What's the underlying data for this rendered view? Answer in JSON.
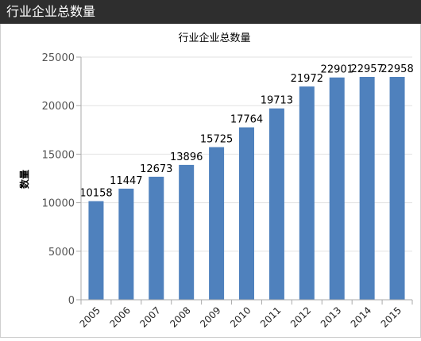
{
  "header": {
    "title": "行业企业总数量"
  },
  "colors": {
    "bar": "#4f81bd",
    "header_bg": "#2e2e2e",
    "axis": "#aaaaaa",
    "tick_text": "#555555"
  },
  "chart_data": {
    "type": "bar",
    "title": "行业企业总数量",
    "xlabel": "",
    "ylabel": "数量",
    "categories": [
      "2005",
      "2006",
      "2007",
      "2008",
      "2009",
      "2010",
      "2011",
      "2012",
      "2013",
      "2014",
      "2015"
    ],
    "values": [
      10158,
      11447,
      12673,
      13896,
      15725,
      17764,
      19713,
      21972,
      22901,
      22957,
      22958
    ],
    "data_labels": [
      "10158",
      "11447",
      "12673",
      "13896",
      "15725",
      "17764",
      "19713",
      "21972",
      "22901",
      "22957",
      "22958"
    ],
    "ylim": [
      0,
      25000
    ],
    "yticks": [
      "0",
      "5000",
      "10000",
      "15000",
      "20000",
      "25000"
    ],
    "grid": true,
    "legend": "none"
  }
}
